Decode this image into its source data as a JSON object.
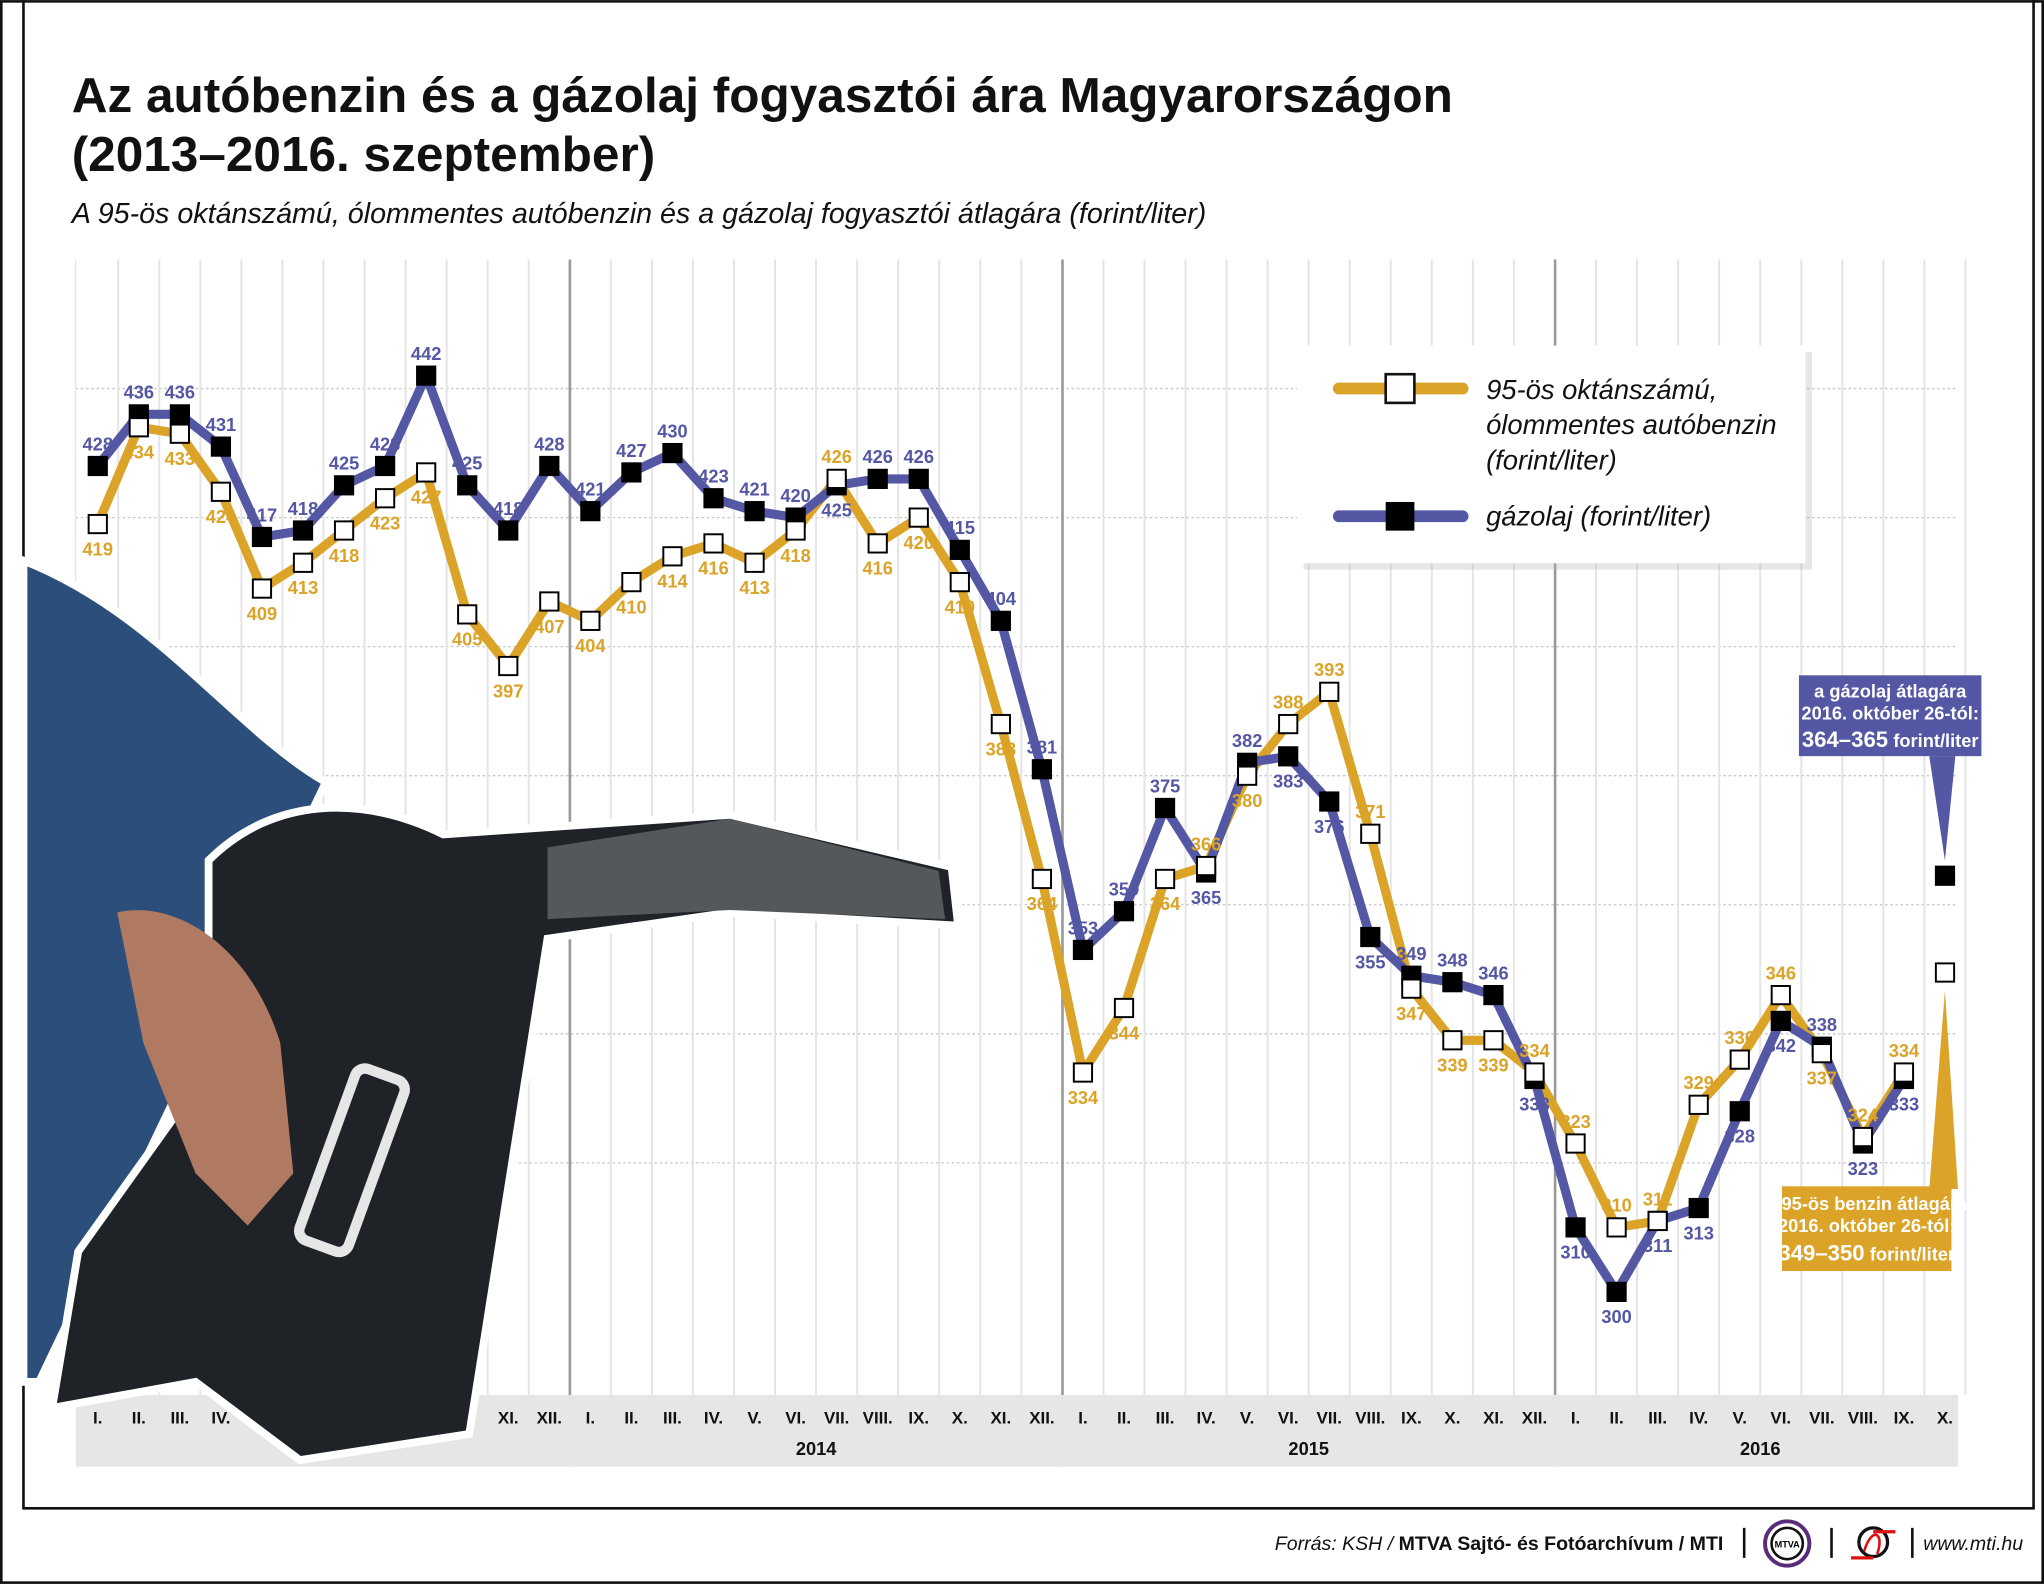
{
  "title_line1": "Az autóbenzin és a gázolaj fogyasztói ára Magyarországon",
  "title_line2": "(2013–2016. szeptember)",
  "subtitle": "A 95-ös oktánszámú, ólommentes autóbenzin és a gázolaj fogyasztói átlagára (forint/liter)",
  "colors": {
    "benzin": "#dba327",
    "gazolaj": "#5457a3",
    "grid": "#d0d0d0",
    "axis_band": "#e6e6e6"
  },
  "legend": {
    "benzin_lines": [
      "95-ös oktánszámú,",
      "ólommentes autóbenzin",
      "(forint/liter)"
    ],
    "gazolaj": "gázolaj (forint/liter)"
  },
  "callouts": {
    "gazolaj": {
      "line1": "a gázolaj átlagára",
      "line2": "2016. október 26-tól:",
      "value": "364–365",
      "unit": "forint/liter"
    },
    "benzin": {
      "line1": "a 95-ös benzin átlagára",
      "line2": "2016. október 26-tól:",
      "value": "349–350",
      "unit": "forint/liter"
    }
  },
  "chart_data": {
    "type": "line",
    "title": "Az autóbenzin és a gázolaj fogyasztói ára Magyarországon (2013–2016. szeptember)",
    "ylabel": "forint/liter",
    "ylim": [
      284,
      460
    ],
    "grid": true,
    "legend_position": "top-right",
    "month_labels": [
      "I.",
      "II.",
      "III.",
      "IV.",
      "V.",
      "VI.",
      "VII.",
      "VIII.",
      "IX.",
      "X.",
      "XI.",
      "XII."
    ],
    "years": [
      "2013",
      "2014",
      "2015",
      "2016"
    ],
    "last_month_index_2016": 10,
    "series": [
      {
        "name": "95-ös oktánszámú, ólommentes autóbenzin (forint/liter)",
        "key": "benzin",
        "marker": "open-square",
        "values": [
          419,
          434,
          433,
          424,
          409,
          413,
          418,
          423,
          427,
          405,
          397,
          407,
          404,
          410,
          414,
          416,
          413,
          418,
          426,
          416,
          420,
          410,
          388,
          364,
          334,
          344,
          364,
          366,
          380,
          388,
          393,
          371,
          347,
          339,
          339,
          334,
          323,
          310,
          311,
          329,
          336,
          346,
          337,
          324,
          334
        ],
        "october_2016": 349.5
      },
      {
        "name": "gázolaj (forint/liter)",
        "key": "gazolaj",
        "marker": "filled-square",
        "values": [
          428,
          436,
          436,
          431,
          417,
          418,
          425,
          428,
          442,
          425,
          418,
          428,
          421,
          427,
          430,
          423,
          421,
          420,
          425,
          426,
          426,
          415,
          404,
          381,
          353,
          359,
          375,
          365,
          382,
          383,
          376,
          355,
          349,
          348,
          346,
          333,
          310,
          300,
          311,
          313,
          328,
          342,
          338,
          323,
          333
        ],
        "october_2016": 364.5
      }
    ]
  },
  "footer": {
    "source_prefix": "Forrás: KSH / ",
    "source_bold": "MTVA Sajtó- és Fotóarchívum / MTI",
    "logo_mtva": "MTVA",
    "url": "www.mti.hu"
  }
}
